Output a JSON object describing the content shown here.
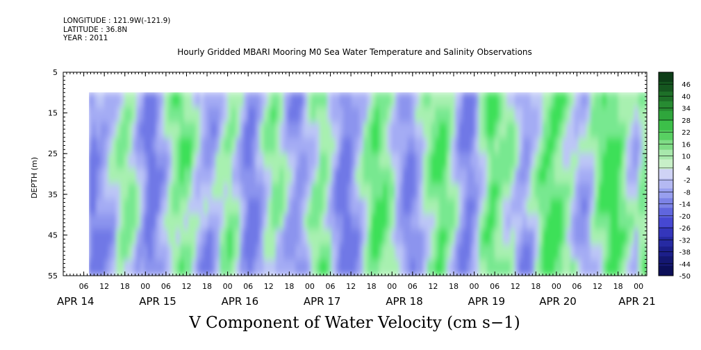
{
  "meta": {
    "longitude": "LONGITUDE : 121.9W(-121.9)",
    "latitude": "LATITUDE : 36.8N",
    "year": "YEAR : 2011"
  },
  "chart_data": {
    "type": "heatmap",
    "title": "Hourly Gridded MBARI Mooring M0 Sea Water Temperature and Salinity Observations",
    "bottom_title": "V Component of Water Velocity (cm s−1)",
    "ylabel": "DEPTH (m)",
    "y_ticks": [
      "5",
      "15",
      "25",
      "35",
      "45",
      "55"
    ],
    "y_range": [
      5,
      55
    ],
    "data_depth_range": [
      10,
      55
    ],
    "x_hour_ticks": [
      "06",
      "12",
      "18",
      "00",
      "06",
      "12",
      "18",
      "00",
      "06",
      "12",
      "18",
      "00",
      "06",
      "12",
      "18",
      "00",
      "06",
      "12",
      "18",
      "00",
      "06",
      "12",
      "18",
      "00",
      "06",
      "12",
      "18",
      "00"
    ],
    "x_date_labels": [
      "APR 14",
      "APR 15",
      "APR 16",
      "APR 17",
      "APR 18",
      "APR 19",
      "APR 20",
      "APR 21"
    ],
    "colorbar_labels": [
      "46",
      "40",
      "34",
      "28",
      "22",
      "16",
      "10",
      "4",
      "-2",
      "-8",
      "-14",
      "-20",
      "-26",
      "-32",
      "-38",
      "-44",
      "-50"
    ],
    "colorbar_range": [
      -50,
      52
    ],
    "colorbar_colors": [
      "#0d3d17",
      "#15561f",
      "#1e7028",
      "#278b32",
      "#2fa63c",
      "#3cbf49",
      "#58d062",
      "#7fdc86",
      "#a8e8ac",
      "#c8f0c8",
      "#cfd3f5",
      "#b4b9f2",
      "#989fee",
      "#7c83e6",
      "#6066de",
      "#4648d2",
      "#3436bb",
      "#262aa2",
      "#1c1f8a",
      "#141771",
      "#0c0f58"
    ],
    "field_colors": {
      "strong_green": "#3ce058",
      "green": "#78e890",
      "light_green": "#a8f0b0",
      "pale": "#bcc6f6",
      "light_blue": "#a4acf4",
      "blue": "#8c94ee",
      "strong_blue": "#6f78e6"
    },
    "time_columns_v": [
      -12,
      -14,
      -10,
      -8,
      -6,
      -4,
      -2,
      2,
      4,
      6,
      4,
      2,
      -2,
      -6,
      -12,
      -16,
      -14,
      -10,
      -6,
      -2,
      2,
      6,
      8,
      10,
      8,
      6,
      2,
      -2,
      -4,
      -6,
      -8,
      -6,
      -2,
      2,
      4,
      6,
      4,
      0,
      -4,
      -10,
      -14,
      -12,
      -8,
      -4,
      0,
      4,
      6,
      4,
      2,
      -2,
      -6,
      -8,
      -10,
      -8,
      -4,
      0,
      4,
      6,
      8,
      6,
      2,
      -4,
      -8,
      -12,
      -16,
      -14,
      -10,
      -6,
      -2,
      2,
      6,
      10,
      12,
      10,
      8,
      6,
      2,
      -2,
      -6,
      -10,
      -12,
      -10,
      -6,
      -2,
      2,
      6,
      8,
      10,
      12,
      10,
      6,
      2,
      -4,
      -8,
      -12,
      -14,
      -10,
      -4,
      2,
      6,
      10,
      12,
      10,
      8,
      6,
      4,
      2,
      -2,
      -6,
      -8,
      -6,
      -2,
      2,
      6,
      10,
      12,
      14,
      12,
      10,
      6,
      4,
      2,
      -2,
      -4,
      -6,
      -4,
      0,
      4,
      8,
      12,
      14,
      16,
      14,
      10,
      6,
      2,
      0,
      -2,
      4,
      8
    ]
  }
}
